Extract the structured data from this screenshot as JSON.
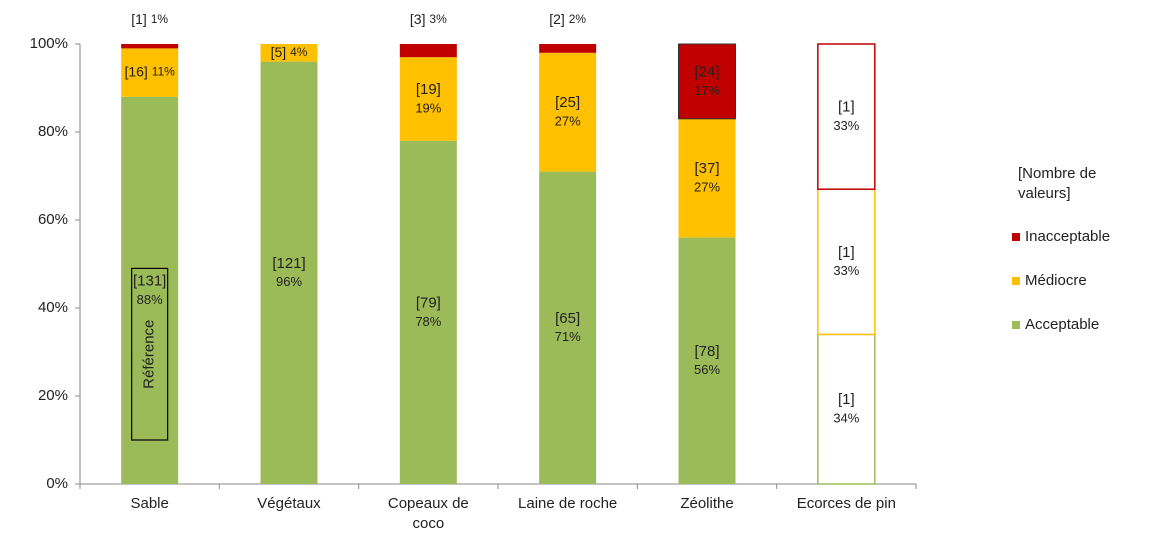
{
  "chart_data": {
    "type": "stacked_bar",
    "categories": [
      "Sable",
      "Végétaux",
      "Copeaux de coco",
      "Laine de roche",
      "Zéolithe",
      "Ecorces de pin"
    ],
    "series": [
      {
        "name": "Acceptable",
        "color": "#9bbb59",
        "values": [
          88,
          96,
          78,
          71,
          56,
          34
        ],
        "count_labels": [
          "[131]",
          "[121]",
          "[79]",
          "[65]",
          "[78]",
          "[1]"
        ],
        "value_labels": [
          "88%",
          "96%",
          "78%",
          "71%",
          "56%",
          "34%"
        ]
      },
      {
        "name": "Médiocre",
        "color": "#ffc000",
        "values": [
          11,
          4,
          19,
          27,
          27,
          33
        ],
        "count_labels": [
          "[16]",
          "[5]",
          "[19]",
          "[25]",
          "[37]",
          "[1]"
        ],
        "value_labels": [
          "11%",
          "4%",
          "19%",
          "27%",
          "27%",
          "33%"
        ]
      },
      {
        "name": "Inacceptable",
        "color": "#c00000",
        "values": [
          1,
          0,
          3,
          2,
          17,
          33
        ],
        "count_labels": [
          "[1]",
          null,
          "[3]",
          "[2]",
          "[24]",
          "[1]"
        ],
        "value_labels": [
          "1%",
          null,
          "3%",
          "2%",
          "17%",
          "33%"
        ]
      }
    ],
    "hollow": [
      false,
      false,
      false,
      false,
      false,
      true
    ],
    "legend_title": "[Nombre de valeurs]",
    "legend": "right",
    "annotation": "Référence",
    "ylim": [
      0,
      100
    ],
    "yticks": [
      {
        "value": 0,
        "label": "0%"
      },
      {
        "value": 20,
        "label": "20%"
      },
      {
        "value": 40,
        "label": "40%"
      },
      {
        "value": 60,
        "label": "60%"
      },
      {
        "value": 80,
        "label": "80%"
      },
      {
        "value": 100,
        "label": "100%"
      }
    ]
  }
}
